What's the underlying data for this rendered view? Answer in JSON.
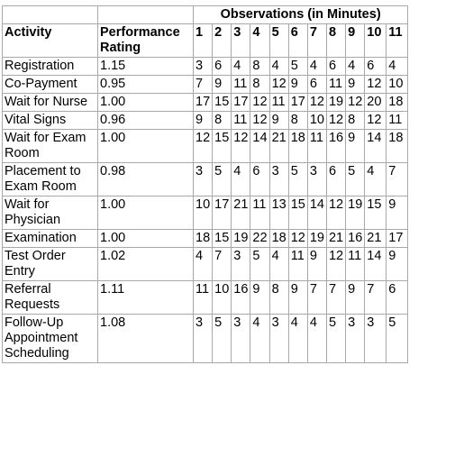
{
  "table": {
    "group_header": "Observations (in Minutes)",
    "col_activity": "Activity",
    "col_rating": "Performance Rating",
    "obs_numbers": [
      "1",
      "2",
      "3",
      "4",
      "5",
      "6",
      "7",
      "8",
      "9",
      "10",
      "11"
    ],
    "rows": [
      {
        "activity": "Registration",
        "rating": "1.15",
        "obs": [
          "3",
          "6",
          "4",
          "8",
          "4",
          "5",
          "4",
          "6",
          "4",
          "6",
          "4"
        ]
      },
      {
        "activity": "Co-Payment",
        "rating": "0.95",
        "obs": [
          "7",
          "9",
          "11",
          "8",
          "12",
          "9",
          "6",
          "11",
          "9",
          "12",
          "10"
        ]
      },
      {
        "activity": "Wait for Nurse",
        "rating": "1.00",
        "obs": [
          "17",
          "15",
          "17",
          "12",
          "11",
          "17",
          "12",
          "19",
          "12",
          "20",
          "18"
        ]
      },
      {
        "activity": "Vital Signs",
        "rating": "0.96",
        "obs": [
          "9",
          "8",
          "11",
          "12",
          "9",
          "8",
          "10",
          "12",
          "8",
          "12",
          "11"
        ]
      },
      {
        "activity": "Wait for Exam Room",
        "rating": "1.00",
        "obs": [
          "12",
          "15",
          "12",
          "14",
          "21",
          "18",
          "11",
          "16",
          "9",
          "14",
          "18"
        ]
      },
      {
        "activity": "Placement to Exam Room",
        "rating": "0.98",
        "obs": [
          "3",
          "5",
          "4",
          "6",
          "3",
          "5",
          "3",
          "6",
          "5",
          "4",
          "7"
        ]
      },
      {
        "activity": "Wait for Physician",
        "rating": "1.00",
        "obs": [
          "10",
          "17",
          "21",
          "11",
          "13",
          "15",
          "14",
          "12",
          "19",
          "15",
          "9"
        ]
      },
      {
        "activity": "Examination",
        "rating": "1.00",
        "obs": [
          "18",
          "15",
          "19",
          "22",
          "18",
          "12",
          "19",
          "21",
          "16",
          "21",
          "17"
        ]
      },
      {
        "activity": "Test Order Entry",
        "rating": "1.02",
        "obs": [
          "4",
          "7",
          "3",
          "5",
          "4",
          "11",
          "9",
          "12",
          "11",
          "14",
          "9"
        ]
      },
      {
        "activity": "Referral Requests",
        "rating": "1.11",
        "obs": [
          "11",
          "10",
          "16",
          "9",
          "8",
          "9",
          "7",
          "7",
          "9",
          "7",
          "6"
        ]
      },
      {
        "activity": "Follow-Up Appointment Scheduling",
        "rating": "1.08",
        "obs": [
          "3",
          "5",
          "3",
          "4",
          "3",
          "4",
          "4",
          "5",
          "3",
          "3",
          "5"
        ]
      }
    ]
  }
}
